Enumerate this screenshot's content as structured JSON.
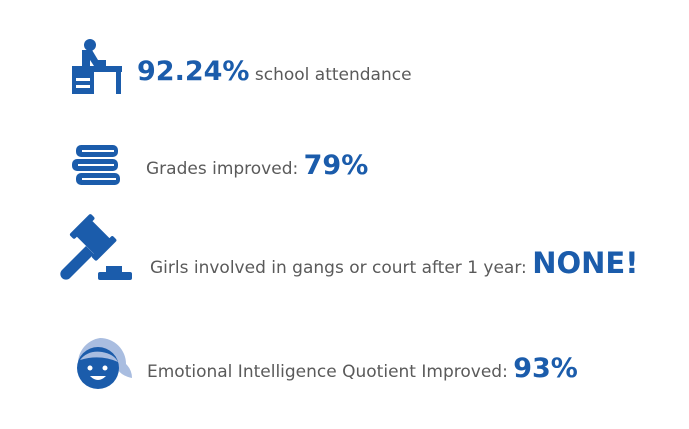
{
  "items": [
    {
      "value": "92.24%",
      "label": "school attendance"
    },
    {
      "label": "Grades improved:",
      "value": "79%"
    },
    {
      "label": "Girls involved in gangs or court after 1 year:",
      "value": "NONE!"
    },
    {
      "label": "Emotional Intelligence Quotient Improved:",
      "value": "93%"
    }
  ]
}
